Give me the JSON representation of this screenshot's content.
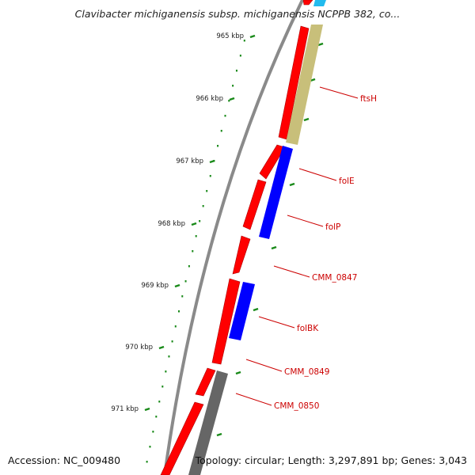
{
  "title": "Clavibacter michiganensis subsp. michiganensis NCPPB 382, co...",
  "footer": {
    "accession": "Accession: NC_009480",
    "topology": "Topology: circular; Length: 3,297,891 bp; Genes: 3,043"
  },
  "colors": {
    "forward_gene": "#ff0000",
    "reverse_blue": "#0000ff",
    "reverse_tan": "#c8bf7a",
    "reverse_gray": "#666666",
    "reverse_cyan": "#22bbee",
    "backbone": "#888888",
    "tick": "#1a8a1a",
    "label": "#cc0000"
  },
  "kbp_ticks": [
    {
      "label": "965 kbp"
    },
    {
      "label": "966 kbp"
    },
    {
      "label": "967 kbp"
    },
    {
      "label": "968 kbp"
    },
    {
      "label": "969 kbp"
    },
    {
      "label": "970 kbp"
    },
    {
      "label": "971 kbp"
    }
  ],
  "gene_labels": [
    {
      "name": "ftsH"
    },
    {
      "name": "folE"
    },
    {
      "name": "folP"
    },
    {
      "name": "CMM_0847"
    },
    {
      "name": "folBK"
    },
    {
      "name": "CMM_0849"
    },
    {
      "name": "CMM_0850"
    }
  ]
}
